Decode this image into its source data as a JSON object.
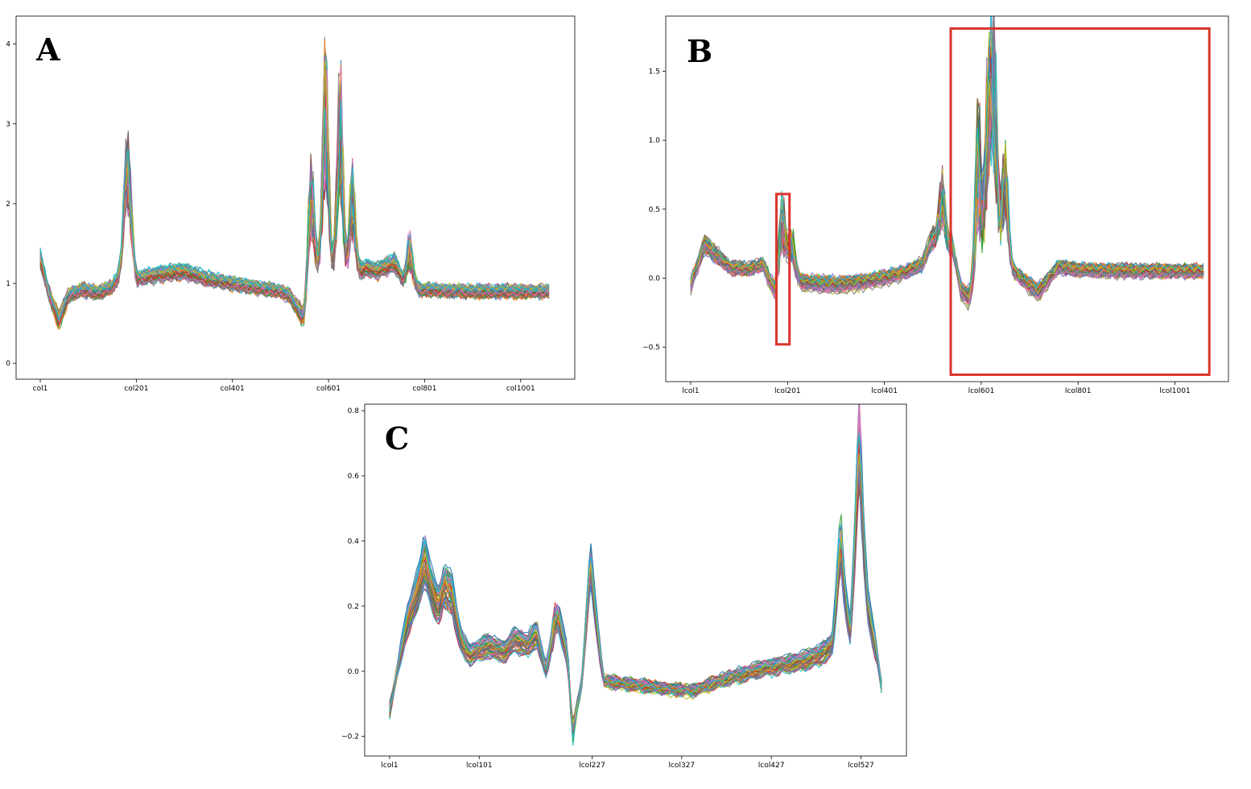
{
  "chart_data": [
    {
      "type": "line",
      "panel_label": "A",
      "xlabel": "",
      "ylabel": "",
      "x_range": [
        1,
        1060
      ],
      "ylim": [
        -0.2,
        4.35
      ],
      "yticks": [
        0,
        1,
        2,
        3,
        4
      ],
      "yticklabels": [
        "0",
        "1",
        "2",
        "3",
        "4"
      ],
      "xticks": [
        1,
        201,
        401,
        601,
        801,
        1001
      ],
      "xticklabels": [
        "col1",
        "col201",
        "col401",
        "col601",
        "col801",
        "col1001"
      ],
      "series_count": 60,
      "baseline_profile": {
        "x": [
          1,
          20,
          40,
          60,
          90,
          120,
          150,
          180,
          200,
          210,
          240,
          300,
          350,
          400,
          450,
          500,
          520,
          550,
          560,
          580,
          600,
          620,
          640,
          660,
          680,
          700,
          720,
          740,
          760,
          800,
          900,
          1000,
          1060
        ],
        "y": [
          1.3,
          0.85,
          0.55,
          0.85,
          0.92,
          0.88,
          0.95,
          1.2,
          1.0,
          1.07,
          1.1,
          1.15,
          1.05,
          1.0,
          0.95,
          0.9,
          0.85,
          0.55,
          0.95,
          1.1,
          1.0,
          1.05,
          0.9,
          1.1,
          1.2,
          1.15,
          1.2,
          1.25,
          0.95,
          0.92,
          0.9,
          0.9,
          0.9
        ]
      },
      "peaks": [
        {
          "x": 180,
          "y": 2.57
        },
        {
          "x": 188,
          "y": 2.02
        },
        {
          "x": 565,
          "y": 2.63
        },
        {
          "x": 595,
          "y": 4.22
        },
        {
          "x": 625,
          "y": 3.95
        },
        {
          "x": 650,
          "y": 2.57
        },
        {
          "x": 770,
          "y": 1.64
        }
      ],
      "highlights": []
    },
    {
      "type": "line",
      "panel_label": "B",
      "xlabel": "",
      "ylabel": "",
      "x_range": [
        1,
        1060
      ],
      "ylim": [
        -0.75,
        1.9
      ],
      "yticks": [
        -0.5,
        0.0,
        0.5,
        1.0,
        1.5
      ],
      "yticklabels": [
        "−0.5",
        "0.0",
        "0.5",
        "1.0",
        "1.5"
      ],
      "xticks": [
        1,
        201,
        401,
        601,
        801,
        1001
      ],
      "xticklabels": [
        "lcol1",
        "lcol201",
        "lcol401",
        "lcol601",
        "lcol801",
        "lcol1001"
      ],
      "series_count": 60,
      "baseline_profile": {
        "x": [
          1,
          30,
          50,
          80,
          120,
          150,
          175,
          200,
          230,
          300,
          350,
          400,
          450,
          480,
          500,
          520,
          540,
          560,
          600,
          650,
          700,
          720,
          760,
          800,
          900,
          1000,
          1060
        ],
        "y": [
          -0.05,
          0.25,
          0.18,
          0.08,
          0.06,
          0.1,
          -0.1,
          0.05,
          -0.03,
          -0.05,
          -0.03,
          0.0,
          0.05,
          0.1,
          0.3,
          0.15,
          0.25,
          -0.1,
          -0.2,
          0.1,
          -0.05,
          -0.1,
          0.08,
          0.06,
          0.05,
          0.05,
          0.05
        ]
      },
      "peaks": [
        {
          "x": 190,
          "y": 0.62
        },
        {
          "x": 210,
          "y": 0.35
        },
        {
          "x": 520,
          "y": 0.78
        },
        {
          "x": 595,
          "y": 1.38
        },
        {
          "x": 615,
          "y": 1.6
        },
        {
          "x": 628,
          "y": 1.78
        },
        {
          "x": 650,
          "y": 1.02
        }
      ],
      "highlights": [
        {
          "x0": 178,
          "x1": 205,
          "y0": -0.48,
          "y1": 0.61
        },
        {
          "x0": 538,
          "x1": 1072,
          "y0": -0.7,
          "y1": 1.81
        }
      ]
    },
    {
      "type": "line",
      "panel_label": "C",
      "xlabel": "",
      "ylabel": "",
      "x_range": [
        1,
        550
      ],
      "ylim": [
        -0.26,
        0.82
      ],
      "yticks": [
        -0.2,
        0.0,
        0.2,
        0.4,
        0.6,
        0.8
      ],
      "yticklabels": [
        "−0.2",
        "0.0",
        "0.2",
        "0.4",
        "0.6",
        "0.8"
      ],
      "xticks": [
        1,
        101,
        227,
        327,
        427,
        527
      ],
      "xticklabels": [
        "lcol1",
        "lcol101",
        "lcol227",
        "lcol327",
        "lcol427",
        "lcol527"
      ],
      "series_count": 60,
      "baseline_profile": {
        "x": [
          1,
          20,
          40,
          55,
          70,
          80,
          90,
          110,
          130,
          140,
          155,
          165,
          175,
          190,
          200,
          205,
          215,
          225,
          240,
          270,
          300,
          340,
          380,
          420,
          460,
          480,
          495,
          505,
          515,
          525,
          535,
          545,
          550
        ],
        "y": [
          -0.12,
          0.15,
          0.32,
          0.2,
          0.25,
          0.1,
          0.05,
          0.08,
          0.06,
          0.1,
          0.08,
          0.12,
          0.0,
          0.15,
          0.05,
          -0.15,
          -0.05,
          0.3,
          -0.03,
          -0.04,
          -0.05,
          -0.06,
          -0.02,
          0.01,
          0.03,
          0.05,
          0.08,
          0.3,
          0.12,
          0.55,
          0.2,
          0.05,
          -0.05
        ]
      },
      "peaks": [
        {
          "x": 40,
          "y": 0.36
        },
        {
          "x": 62,
          "y": 0.28
        },
        {
          "x": 185,
          "y": 0.17
        },
        {
          "x": 225,
          "y": 0.36
        },
        {
          "x": 205,
          "y": -0.21
        },
        {
          "x": 503,
          "y": 0.4
        },
        {
          "x": 525,
          "y": 0.77
        }
      ],
      "highlights": []
    }
  ],
  "style": {
    "palette": [
      "#1f77b4",
      "#ff7f0e",
      "#2ca02c",
      "#d62728",
      "#9467bd",
      "#8c564b",
      "#e377c2",
      "#7f7f7f",
      "#bcbd22",
      "#17becf"
    ],
    "highlight_color": "#d9342b"
  }
}
